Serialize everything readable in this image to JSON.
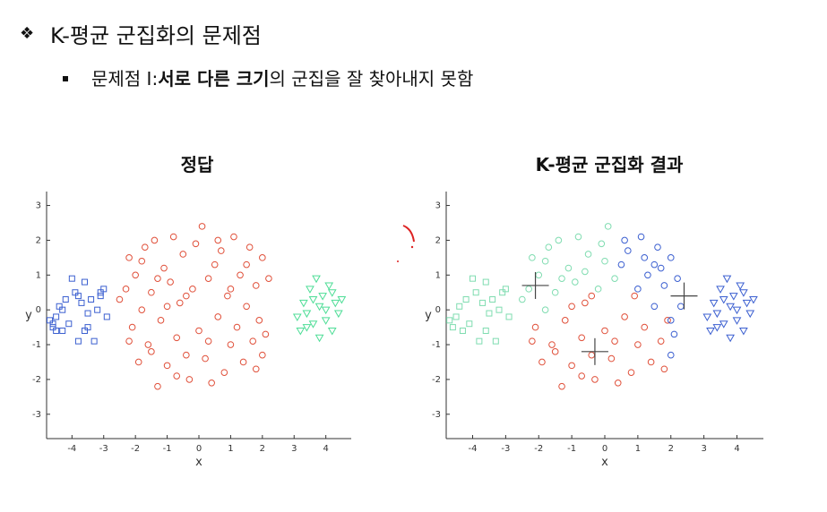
{
  "bullet1": {
    "icon": "diamond-bullet-icon",
    "text": "K-평균 군집화의 문제점"
  },
  "bullet2": {
    "icon": "square-bullet-icon",
    "prefix": "문제점 I: ",
    "bold1": "서로 다른 크기",
    "mid": "의 군집을 잘 찾아내지 못함"
  },
  "chart_data": [
    {
      "type": "scatter",
      "title": "정답",
      "xlabel": "x",
      "ylabel": "y",
      "xlim": [
        -4.8,
        4.8
      ],
      "ylim": [
        -3.7,
        3.4
      ],
      "xticks": [
        -4,
        -3,
        -2,
        -1,
        0,
        1,
        2,
        3,
        4
      ],
      "yticks": [
        -3,
        -2,
        -1,
        0,
        1,
        2,
        3
      ],
      "series": [
        {
          "marker": "square",
          "color": "#3b5fd0",
          "points": [
            [
              -4.7,
              -0.3
            ],
            [
              -4.6,
              -0.5
            ],
            [
              -4.5,
              -0.2
            ],
            [
              -4.4,
              0.1
            ],
            [
              -4.3,
              -0.6
            ],
            [
              -4.2,
              0.3
            ],
            [
              -4.1,
              -0.4
            ],
            [
              -4.0,
              0.9
            ],
            [
              -3.9,
              0.5
            ],
            [
              -3.8,
              -0.9
            ],
            [
              -3.7,
              0.2
            ],
            [
              -3.6,
              -0.6
            ],
            [
              -3.6,
              0.8
            ],
            [
              -3.5,
              -0.1
            ],
            [
              -3.4,
              0.3
            ],
            [
              -3.3,
              -0.9
            ],
            [
              -3.2,
              0.0
            ],
            [
              -3.1,
              0.5
            ],
            [
              -3.0,
              0.6
            ],
            [
              -3.1,
              0.4
            ],
            [
              -2.9,
              -0.2
            ],
            [
              -4.6,
              -0.4
            ],
            [
              -4.5,
              -0.6
            ],
            [
              -4.3,
              0.0
            ],
            [
              -3.8,
              0.4
            ],
            [
              -3.5,
              -0.5
            ]
          ]
        },
        {
          "marker": "circle",
          "color": "#e0503a",
          "points": [
            [
              -2.5,
              0.3
            ],
            [
              -2.3,
              0.6
            ],
            [
              -2.2,
              1.5
            ],
            [
              -2.1,
              -0.5
            ],
            [
              -2.0,
              1.0
            ],
            [
              -1.9,
              -1.5
            ],
            [
              -1.8,
              0.0
            ],
            [
              -1.7,
              1.8
            ],
            [
              -1.6,
              -1.0
            ],
            [
              -1.5,
              0.5
            ],
            [
              -1.4,
              2.0
            ],
            [
              -1.3,
              -2.2
            ],
            [
              -1.2,
              -0.3
            ],
            [
              -1.1,
              1.2
            ],
            [
              -1.0,
              -1.6
            ],
            [
              -0.9,
              0.8
            ],
            [
              -0.8,
              2.1
            ],
            [
              -0.7,
              -0.8
            ],
            [
              -0.6,
              0.2
            ],
            [
              -0.5,
              1.6
            ],
            [
              -0.4,
              -1.3
            ],
            [
              -0.3,
              -2.0
            ],
            [
              -0.2,
              0.6
            ],
            [
              -0.1,
              1.9
            ],
            [
              0.0,
              -0.6
            ],
            [
              0.1,
              2.4
            ],
            [
              0.2,
              -1.4
            ],
            [
              0.3,
              0.9
            ],
            [
              0.4,
              -2.1
            ],
            [
              0.5,
              1.3
            ],
            [
              0.6,
              -0.2
            ],
            [
              0.7,
              1.7
            ],
            [
              0.8,
              -1.8
            ],
            [
              0.9,
              0.4
            ],
            [
              1.0,
              -1.0
            ],
            [
              1.1,
              2.1
            ],
            [
              1.2,
              -0.5
            ],
            [
              1.3,
              1.0
            ],
            [
              1.4,
              -1.5
            ],
            [
              1.5,
              0.1
            ],
            [
              1.6,
              1.8
            ],
            [
              1.7,
              -0.9
            ],
            [
              1.8,
              0.7
            ],
            [
              1.9,
              -0.3
            ],
            [
              2.0,
              1.5
            ],
            [
              2.1,
              -0.7
            ],
            [
              2.2,
              0.9
            ],
            [
              2.0,
              -1.3
            ],
            [
              1.5,
              1.3
            ],
            [
              -1.5,
              -1.2
            ],
            [
              -1.8,
              1.4
            ],
            [
              -0.7,
              -1.9
            ],
            [
              0.6,
              2.0
            ],
            [
              -1.0,
              0.1
            ],
            [
              0.3,
              -0.9
            ],
            [
              1.0,
              0.6
            ],
            [
              -0.4,
              0.4
            ],
            [
              -2.2,
              -0.9
            ],
            [
              1.8,
              -1.7
            ],
            [
              -1.3,
              0.9
            ]
          ]
        },
        {
          "marker": "triangle",
          "color": "#4ddd96",
          "points": [
            [
              3.1,
              -0.2
            ],
            [
              3.2,
              -0.6
            ],
            [
              3.3,
              0.2
            ],
            [
              3.4,
              -0.1
            ],
            [
              3.5,
              0.6
            ],
            [
              3.6,
              -0.4
            ],
            [
              3.7,
              0.9
            ],
            [
              3.8,
              0.1
            ],
            [
              3.8,
              -0.8
            ],
            [
              3.9,
              0.4
            ],
            [
              4.0,
              -0.3
            ],
            [
              4.1,
              0.7
            ],
            [
              4.2,
              -0.6
            ],
            [
              4.3,
              0.2
            ],
            [
              4.4,
              -0.1
            ],
            [
              4.5,
              0.3
            ],
            [
              3.6,
              0.3
            ],
            [
              4.0,
              0.0
            ],
            [
              3.4,
              -0.5
            ],
            [
              4.2,
              0.5
            ]
          ]
        }
      ]
    },
    {
      "type": "scatter",
      "title": "K-평균 군집화 결과",
      "xlabel": "x",
      "ylabel": "y",
      "xlim": [
        -4.8,
        4.8
      ],
      "ylim": [
        -3.7,
        3.4
      ],
      "xticks": [
        -4,
        -3,
        -2,
        -1,
        0,
        1,
        2,
        3,
        4
      ],
      "yticks": [
        -3,
        -2,
        -1,
        0,
        1,
        2,
        3
      ],
      "centroids": [
        [
          -2.1,
          0.7
        ],
        [
          -0.3,
          -1.2
        ],
        [
          2.4,
          0.4
        ]
      ],
      "series": [
        {
          "marker": "square",
          "color": "#7fdcb0",
          "points": [
            [
              -4.7,
              -0.3
            ],
            [
              -4.6,
              -0.5
            ],
            [
              -4.5,
              -0.2
            ],
            [
              -4.4,
              0.1
            ],
            [
              -4.3,
              -0.6
            ],
            [
              -4.2,
              0.3
            ],
            [
              -4.1,
              -0.4
            ],
            [
              -4.0,
              0.9
            ],
            [
              -3.9,
              0.5
            ],
            [
              -3.8,
              -0.9
            ],
            [
              -3.7,
              0.2
            ],
            [
              -3.6,
              -0.6
            ],
            [
              -3.6,
              0.8
            ],
            [
              -3.5,
              -0.1
            ],
            [
              -3.4,
              0.3
            ],
            [
              -3.3,
              -0.9
            ],
            [
              -3.2,
              0.0
            ],
            [
              -3.1,
              0.5
            ],
            [
              -3.0,
              0.6
            ],
            [
              -2.9,
              -0.2
            ]
          ]
        },
        {
          "marker": "circle",
          "color": "#7fdcb0",
          "points": [
            [
              -2.3,
              0.6
            ],
            [
              -2.2,
              1.5
            ],
            [
              -2.0,
              1.0
            ],
            [
              -1.8,
              0.0
            ],
            [
              -1.7,
              1.8
            ],
            [
              -1.5,
              0.5
            ],
            [
              -1.4,
              2.0
            ],
            [
              -1.1,
              1.2
            ],
            [
              -0.9,
              0.8
            ],
            [
              -0.8,
              2.1
            ],
            [
              -0.5,
              1.6
            ],
            [
              -0.2,
              0.6
            ],
            [
              -0.1,
              1.9
            ],
            [
              0.1,
              2.4
            ],
            [
              0.3,
              0.9
            ],
            [
              -1.8,
              1.4
            ],
            [
              -1.3,
              0.9
            ],
            [
              -2.5,
              0.3
            ],
            [
              0.0,
              1.4
            ],
            [
              -0.6,
              1.1
            ]
          ]
        },
        {
          "marker": "circle",
          "color": "#e0503a",
          "points": [
            [
              -2.1,
              -0.5
            ],
            [
              -1.9,
              -1.5
            ],
            [
              -1.6,
              -1.0
            ],
            [
              -1.3,
              -2.2
            ],
            [
              -1.2,
              -0.3
            ],
            [
              -1.0,
              -1.6
            ],
            [
              -0.7,
              -0.8
            ],
            [
              -0.6,
              0.2
            ],
            [
              -0.4,
              -1.3
            ],
            [
              -0.3,
              -2.0
            ],
            [
              0.0,
              -0.6
            ],
            [
              0.2,
              -1.4
            ],
            [
              0.4,
              -2.1
            ],
            [
              0.6,
              -0.2
            ],
            [
              0.8,
              -1.8
            ],
            [
              0.9,
              0.4
            ],
            [
              1.0,
              -1.0
            ],
            [
              1.2,
              -0.5
            ],
            [
              1.4,
              -1.5
            ],
            [
              1.7,
              -0.9
            ],
            [
              -1.5,
              -1.2
            ],
            [
              -0.7,
              -1.9
            ],
            [
              0.3,
              -0.9
            ],
            [
              -1.0,
              0.1
            ],
            [
              -0.4,
              0.4
            ],
            [
              -2.2,
              -0.9
            ],
            [
              1.8,
              -1.7
            ],
            [
              1.9,
              -0.3
            ]
          ]
        },
        {
          "marker": "circle",
          "color": "#3b5fd0",
          "points": [
            [
              0.5,
              1.3
            ],
            [
              0.7,
              1.7
            ],
            [
              1.1,
              2.1
            ],
            [
              1.3,
              1.0
            ],
            [
              1.5,
              0.1
            ],
            [
              1.6,
              1.8
            ],
            [
              1.8,
              0.7
            ],
            [
              2.0,
              1.5
            ],
            [
              2.1,
              -0.7
            ],
            [
              2.2,
              0.9
            ],
            [
              2.0,
              -1.3
            ],
            [
              1.5,
              1.3
            ],
            [
              0.6,
              2.0
            ],
            [
              1.0,
              0.6
            ],
            [
              2.0,
              -0.3
            ],
            [
              1.2,
              1.5
            ],
            [
              1.7,
              1.2
            ],
            [
              2.3,
              0.1
            ]
          ]
        },
        {
          "marker": "triangle",
          "color": "#3b5fd0",
          "points": [
            [
              3.1,
              -0.2
            ],
            [
              3.2,
              -0.6
            ],
            [
              3.3,
              0.2
            ],
            [
              3.4,
              -0.1
            ],
            [
              3.5,
              0.6
            ],
            [
              3.6,
              -0.4
            ],
            [
              3.7,
              0.9
            ],
            [
              3.8,
              0.1
            ],
            [
              3.8,
              -0.8
            ],
            [
              3.9,
              0.4
            ],
            [
              4.0,
              -0.3
            ],
            [
              4.1,
              0.7
            ],
            [
              4.2,
              -0.6
            ],
            [
              4.3,
              0.2
            ],
            [
              4.4,
              -0.1
            ],
            [
              4.5,
              0.3
            ],
            [
              3.6,
              0.3
            ],
            [
              4.0,
              0.0
            ],
            [
              3.4,
              -0.5
            ],
            [
              4.2,
              0.5
            ]
          ]
        }
      ]
    }
  ]
}
